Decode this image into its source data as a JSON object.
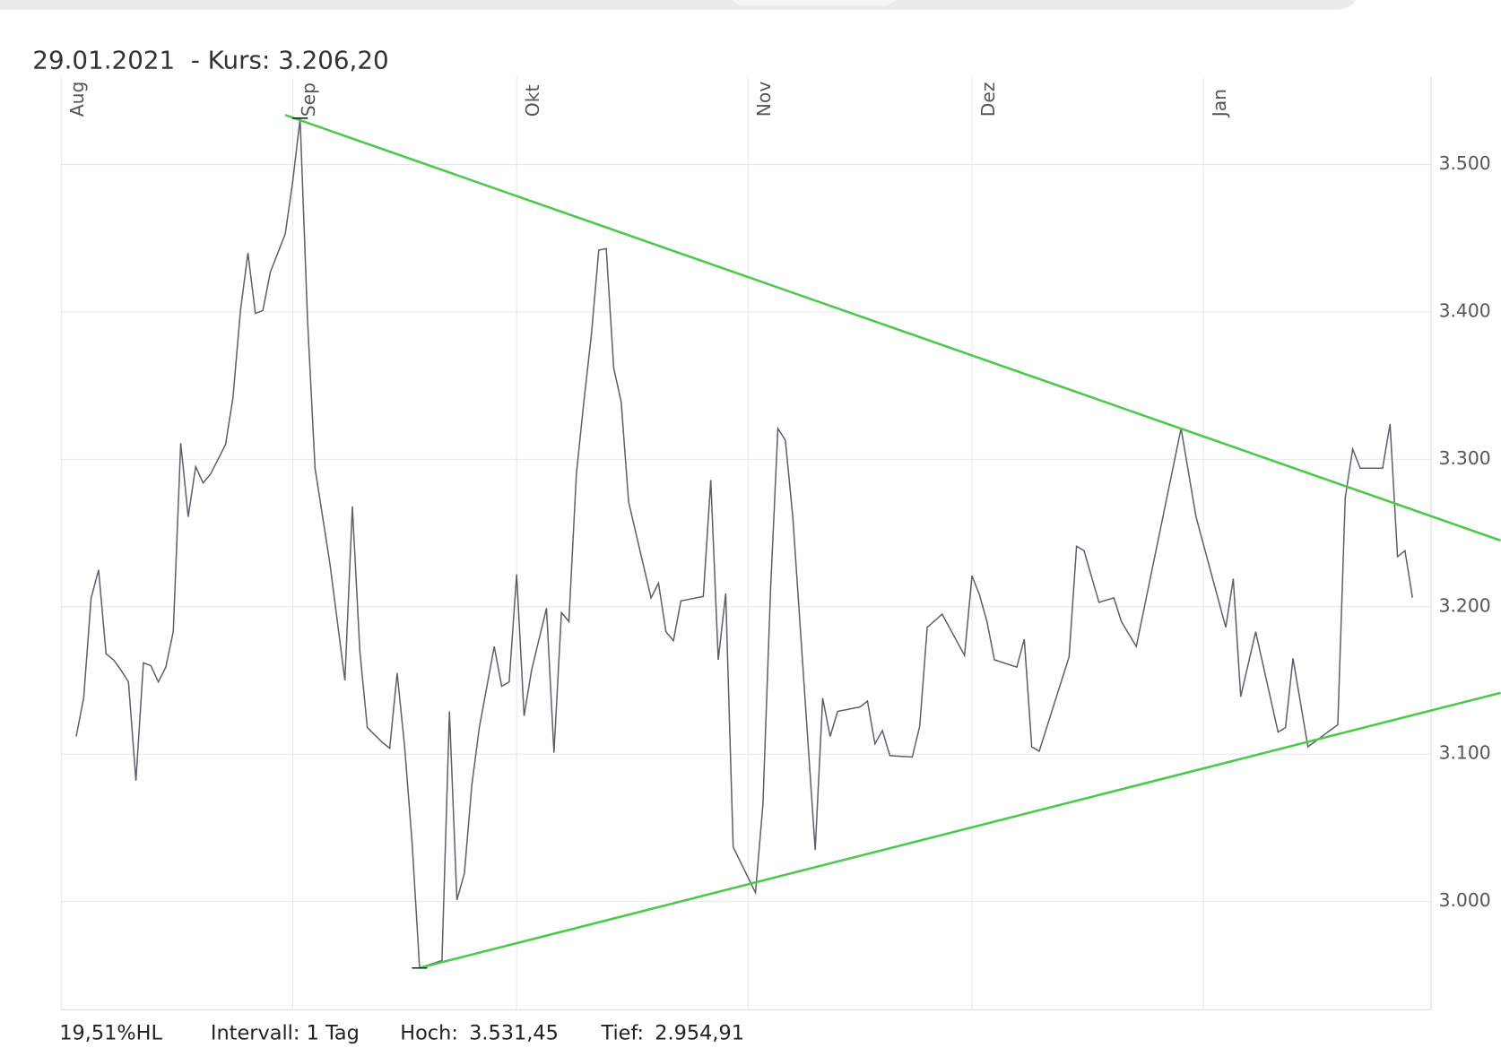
{
  "chart_data": {
    "type": "line",
    "title": "29.01.2021  - Kurs: 3.206,20",
    "xlim": [
      0,
      183.5
    ],
    "xticks": [
      {
        "value": 0,
        "label": "Aug"
      },
      {
        "value": 31,
        "label": "Sep"
      },
      {
        "value": 61,
        "label": "Okt"
      },
      {
        "value": 92,
        "label": "Nov"
      },
      {
        "value": 122,
        "label": "Dez"
      },
      {
        "value": 153,
        "label": "Jan"
      }
    ],
    "ylim": [
      2926.6,
      3559.7
    ],
    "yticks": [
      {
        "value": 3000,
        "label": "3.000"
      },
      {
        "value": 3100,
        "label": "3.100"
      },
      {
        "value": 3200,
        "label": "3.200"
      },
      {
        "value": 3300,
        "label": "3.300"
      },
      {
        "value": 3400,
        "label": "3.400"
      },
      {
        "value": 3500,
        "label": "3.500"
      }
    ],
    "grid": true,
    "series": [
      {
        "color": "#5a6066",
        "x": [
          2,
          3,
          4,
          5,
          6,
          7,
          8,
          9,
          10,
          11,
          12,
          13,
          14,
          15,
          16,
          17,
          18,
          19,
          20,
          22,
          23,
          24,
          25,
          26,
          27,
          28,
          30,
          31,
          32,
          33,
          34,
          36,
          38,
          39,
          40,
          41,
          43,
          44,
          45,
          46,
          47,
          48,
          51,
          52,
          53,
          54,
          55,
          56,
          58,
          59,
          60,
          61,
          62,
          63,
          65,
          66,
          67,
          68,
          69,
          70,
          71,
          72,
          73,
          74,
          75,
          76,
          79,
          80,
          81,
          82,
          83,
          86,
          87,
          88,
          89,
          90,
          93,
          94,
          95,
          96,
          97,
          98,
          101,
          102,
          103,
          104,
          106,
          107,
          108,
          109,
          110,
          111,
          114,
          115,
          116,
          118,
          121,
          122,
          123,
          124,
          125,
          128,
          129,
          130,
          131,
          135,
          136,
          137,
          139,
          141,
          142,
          144,
          150,
          152,
          156,
          157,
          158,
          160,
          163,
          164,
          165,
          167,
          171,
          172,
          173,
          174,
          177,
          178,
          179,
          180,
          181
        ],
        "values": [
          3112,
          3138,
          3206,
          3225,
          3168,
          3164,
          3157,
          3149,
          3082,
          3162,
          3160,
          3149,
          3159,
          3183,
          3311,
          3261,
          3295,
          3284,
          3290,
          3310,
          3342,
          3401,
          3440,
          3399,
          3401,
          3427,
          3453,
          3488,
          3531,
          3394,
          3294,
          3229,
          3150,
          3268,
          3170,
          3118,
          3108,
          3104,
          3155,
          3105,
          3040,
          2955,
          2960,
          3129,
          3001,
          3019,
          3079,
          3118,
          3173,
          3146,
          3149,
          3222,
          3126,
          3157,
          3199,
          3101,
          3196,
          3190,
          3290,
          3339,
          3384,
          3442,
          3443,
          3362,
          3339,
          3271,
          3206,
          3216,
          3183,
          3177,
          3204,
          3207,
          3286,
          3164,
          3209,
          3037,
          3006,
          3066,
          3209,
          3321,
          3313,
          3261,
          3035,
          3138,
          3112,
          3129,
          3131,
          3132,
          3136,
          3107,
          3116,
          3099,
          3098,
          3119,
          3186,
          3195,
          3167,
          3221,
          3208,
          3190,
          3164,
          3159,
          3178,
          3105,
          3102,
          3166,
          3241,
          3238,
          3203,
          3206,
          3190,
          3173,
          3321,
          3261,
          3186,
          3219,
          3139,
          3183,
          3115,
          3118,
          3165,
          3105,
          3120,
          3274,
          3307,
          3294,
          3294,
          3324,
          3234,
          3238,
          3206.2
        ]
      }
    ],
    "trendlines": [
      {
        "color": "#4cc94c",
        "x": [
          30,
          192.8
        ],
        "values": [
          3533.6,
          3245
        ]
      },
      {
        "color": "#4cc94c",
        "x": [
          48,
          192.8
        ],
        "values": [
          2955,
          3141.6
        ]
      }
    ],
    "footer": {
      "range": "19,51%HL",
      "interval": "Intervall: 1 Tag",
      "high": {
        "label": "Hoch:",
        "value": 3531.45,
        "value_label": "3.531,45"
      },
      "low": {
        "label": "Tief:",
        "value": 2954.91,
        "value_label": "2.954,91"
      }
    }
  }
}
